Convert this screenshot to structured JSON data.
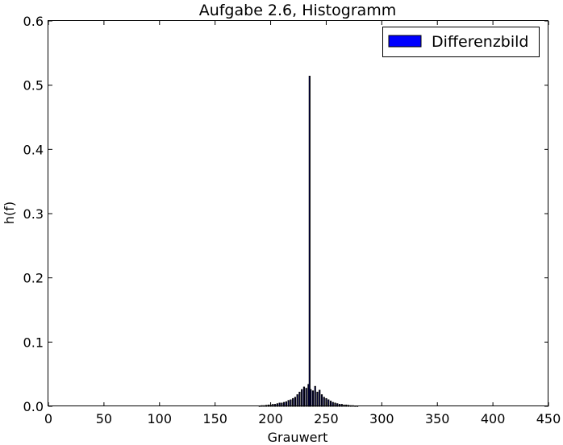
{
  "chart_data": {
    "type": "bar",
    "title": "Aufgabe 2.6, Histogramm",
    "xlabel": "Grauwert",
    "ylabel": "h(f)",
    "xlim": [
      0,
      450
    ],
    "ylim": [
      0,
      0.6
    ],
    "xticks": [
      "0",
      "50",
      "100",
      "150",
      "200",
      "250",
      "300",
      "350",
      "400",
      "450"
    ],
    "yticks": [
      "0.0",
      "0.1",
      "0.2",
      "0.3",
      "0.4",
      "0.5",
      "0.6"
    ],
    "grid": false,
    "legend": {
      "placement": "top-right",
      "entries": [
        "Differenzbild"
      ]
    },
    "colors": {
      "bar_fill": "#0000ff",
      "bar_edge": "#000000"
    },
    "series": [
      {
        "name": "Differenzbild",
        "x": [
          190,
          192,
          194,
          196,
          198,
          200,
          202,
          204,
          206,
          208,
          210,
          212,
          214,
          216,
          218,
          220,
          222,
          224,
          226,
          228,
          230,
          232,
          234,
          235,
          236,
          238,
          240,
          242,
          244,
          246,
          248,
          250,
          252,
          254,
          256,
          258,
          260,
          262,
          264,
          266,
          268,
          270,
          272,
          274,
          276,
          278
        ],
        "values": [
          0.0005,
          0.001,
          0.001,
          0.0015,
          0.002,
          0.002,
          0.003,
          0.003,
          0.004,
          0.005,
          0.005,
          0.006,
          0.007,
          0.009,
          0.01,
          0.012,
          0.014,
          0.018,
          0.022,
          0.026,
          0.03,
          0.028,
          0.034,
          0.514,
          0.026,
          0.024,
          0.031,
          0.022,
          0.025,
          0.018,
          0.014,
          0.012,
          0.01,
          0.008,
          0.006,
          0.005,
          0.004,
          0.003,
          0.003,
          0.002,
          0.002,
          0.0015,
          0.001,
          0.001,
          0.0005,
          0.0005
        ]
      }
    ]
  }
}
